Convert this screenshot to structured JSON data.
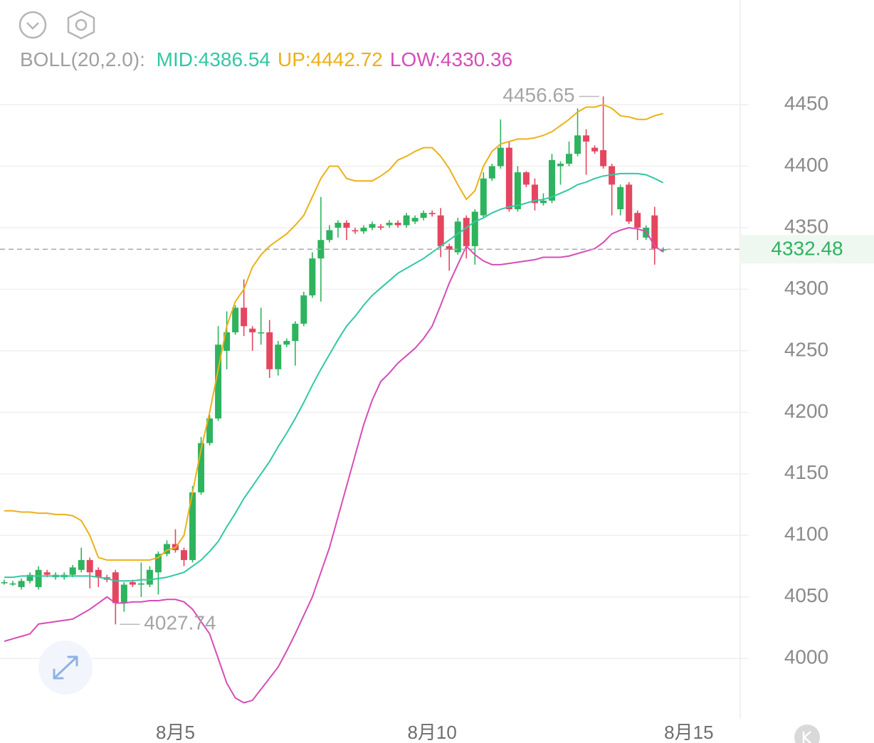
{
  "chart_data": {
    "type": "candlestick",
    "indicator": "BOLL(20,2.0):",
    "open": [
      4062,
      4061,
      4058,
      4063,
      4058,
      4070,
      4066,
      4066,
      4068,
      4072,
      4080,
      4072,
      4066,
      4070,
      4045,
      4062,
      4060,
      4060,
      4070,
      4085,
      4093,
      4088,
      4080,
      4135,
      4175,
      4195,
      4250,
      4265,
      4285,
      4268,
      4265,
      4265,
      4235,
      4255,
      4258,
      4272,
      4295,
      4325,
      4340,
      4350,
      4354,
      4348,
      4347,
      4350,
      4351,
      4352,
      4354,
      4352,
      4355,
      4358,
      4362,
      4360,
      4335,
      4330,
      4358,
      4335,
      4360,
      4390,
      4400,
      4415,
      4365,
      4395,
      4385,
      4370,
      4372,
      4400,
      4402,
      4410,
      4425,
      4415,
      4413,
      4400,
      4365,
      4385,
      4362,
      4342,
      4360,
      4332
    ],
    "high": [
      4064,
      4063,
      4065,
      4070,
      4075,
      4072,
      4070,
      4070,
      4076,
      4090,
      4082,
      4074,
      4068,
      4072,
      4062,
      4064,
      4078,
      4075,
      4087,
      4096,
      4105,
      4090,
      4140,
      4180,
      4198,
      4270,
      4282,
      4287,
      4308,
      4270,
      4285,
      4275,
      4258,
      4260,
      4274,
      4298,
      4330,
      4375,
      4352,
      4356,
      4356,
      4350,
      4352,
      4355,
      4353,
      4356,
      4356,
      4362,
      4360,
      4364,
      4364,
      4366,
      4337,
      4358,
      4360,
      4365,
      4395,
      4402,
      4438,
      4420,
      4400,
      4396,
      4390,
      4378,
      4410,
      4404,
      4420,
      4447,
      4430,
      4417,
      4456.65,
      4402,
      4385,
      4387,
      4364,
      4352,
      4367,
      4334
    ],
    "low": [
      4060,
      4059,
      4056,
      4061,
      4056,
      4066,
      4064,
      4064,
      4066,
      4070,
      4057,
      4058,
      4062,
      4027.74,
      4038,
      4058,
      4050,
      4058,
      4052,
      4083,
      4086,
      4075,
      4078,
      4133,
      4173,
      4193,
      4235,
      4263,
      4262,
      4250,
      4255,
      4228,
      4230,
      4253,
      4238,
      4270,
      4293,
      4290,
      4338,
      4342,
      4340,
      4345,
      4345,
      4348,
      4348,
      4350,
      4350,
      4350,
      4353,
      4356,
      4359,
      4326,
      4315,
      4328,
      4325,
      4320,
      4358,
      4388,
      4398,
      4363,
      4363,
      4383,
      4364,
      4368,
      4370,
      4385,
      4400,
      4408,
      4393,
      4410,
      4398,
      4360,
      4360,
      4353,
      4340,
      4340,
      4320,
      4330
    ],
    "close": [
      4062,
      4061,
      4063,
      4068,
      4072,
      4068,
      4068,
      4068,
      4074,
      4080,
      4070,
      4066,
      4064,
      4045,
      4060,
      4060,
      4061,
      4072,
      4085,
      4093,
      4088,
      4080,
      4135,
      4175,
      4195,
      4255,
      4265,
      4285,
      4270,
      4265,
      4265,
      4235,
      4255,
      4258,
      4272,
      4295,
      4325,
      4340,
      4348,
      4354,
      4350,
      4347,
      4350,
      4353,
      4350,
      4354,
      4352,
      4360,
      4358,
      4362,
      4361,
      4335,
      4332,
      4355,
      4335,
      4363,
      4390,
      4400,
      4415,
      4365,
      4395,
      4385,
      4370,
      4372,
      4405,
      4402,
      4410,
      4425,
      4420,
      4412,
      4400,
      4385,
      4383,
      4355,
      4350,
      4350,
      4333,
      4332.48
    ],
    "up_color": "#2eb35e",
    "down_color": "#e5465f",
    "high_label": "4456.65",
    "low_label": "4027.74",
    "series": [
      {
        "legend_label": "MID:4386.54",
        "color": "#33c7a4",
        "values": [
          4066,
          4066,
          4067,
          4067,
          4067,
          4067,
          4067,
          4067,
          4067,
          4067,
          4067,
          4066,
          4065,
          4063,
          4063,
          4063,
          4064,
          4064,
          4065,
          4066,
          4068,
          4070,
          4075,
          4080,
          4087,
          4095,
          4107,
          4118,
          4130,
          4140,
          4150,
          4160,
          4172,
          4183,
          4195,
          4208,
          4222,
          4235,
          4247,
          4259,
          4270,
          4278,
          4287,
          4295,
          4301,
          4307,
          4313,
          4317,
          4321,
          4325,
          4330,
          4335,
          4340,
          4345,
          4350,
          4355,
          4358,
          4362,
          4365,
          4367,
          4368,
          4370,
          4372,
          4373,
          4375,
          4378,
          4381,
          4385,
          4387,
          4390,
          4392,
          4393,
          4394,
          4394,
          4394,
          4393,
          4390,
          4386.54
        ]
      },
      {
        "legend_label": "UP:4442.72",
        "color": "#ecb019",
        "values": [
          4120,
          4120,
          4119,
          4119,
          4118,
          4118,
          4117,
          4117,
          4116,
          4112,
          4100,
          4082,
          4080,
          4080,
          4080,
          4080,
          4080,
          4080,
          4082,
          4088,
          4090,
          4100,
          4135,
          4170,
          4200,
          4235,
          4270,
          4290,
          4300,
          4318,
          4328,
          4335,
          4340,
          4345,
          4352,
          4360,
          4375,
          4390,
          4400,
          4400,
          4390,
          4388,
          4388,
          4388,
          4392,
          4397,
          4405,
          4408,
          4412,
          4415,
          4415,
          4408,
          4398,
          4385,
          4373,
          4380,
          4400,
          4412,
          4418,
          4420,
          4422,
          4422,
          4423,
          4425,
          4428,
          4433,
          4438,
          4444,
          4448,
          4448,
          4450,
          4447,
          4441,
          4440,
          4438,
          4438,
          4441,
          4442.72
        ]
      },
      {
        "legend_label": "LOW:4330.36",
        "color": "#d64cb8",
        "values": [
          4014,
          4016,
          4018,
          4020,
          4028,
          4029,
          4030,
          4031,
          4032,
          4036,
          4040,
          4045,
          4050,
          4045,
          4045,
          4046,
          4046,
          4047,
          4047,
          4048,
          4048,
          4046,
          4040,
          4030,
          4020,
          4000,
          3980,
          3968,
          3964,
          3966,
          3975,
          3984,
          3993,
          4006,
          4020,
          4035,
          4050,
          4070,
          4090,
          4115,
          4140,
          4165,
          4190,
          4210,
          4225,
          4232,
          4240,
          4246,
          4252,
          4260,
          4270,
          4287,
          4305,
          4320,
          4335,
          4328,
          4323,
          4320,
          4320,
          4321,
          4322,
          4323,
          4324,
          4326,
          4326,
          4326,
          4327,
          4329,
          4331,
          4333,
          4338,
          4345,
          4348,
          4350,
          4349,
          4347,
          4335,
          4330.36
        ]
      }
    ],
    "xlim": [
      -0.5,
      86
    ],
    "xticks": [
      {
        "value": 20,
        "label": "8月5"
      },
      {
        "value": 50,
        "label": "8月10"
      },
      {
        "value": 80,
        "label": "8月15"
      }
    ],
    "ylim": [
      3951,
      4535
    ],
    "yticks": [
      4000,
      4050,
      4100,
      4150,
      4200,
      4250,
      4300,
      4350,
      4400,
      4450
    ],
    "grid": true,
    "last_price_color": "#2eb35e"
  }
}
